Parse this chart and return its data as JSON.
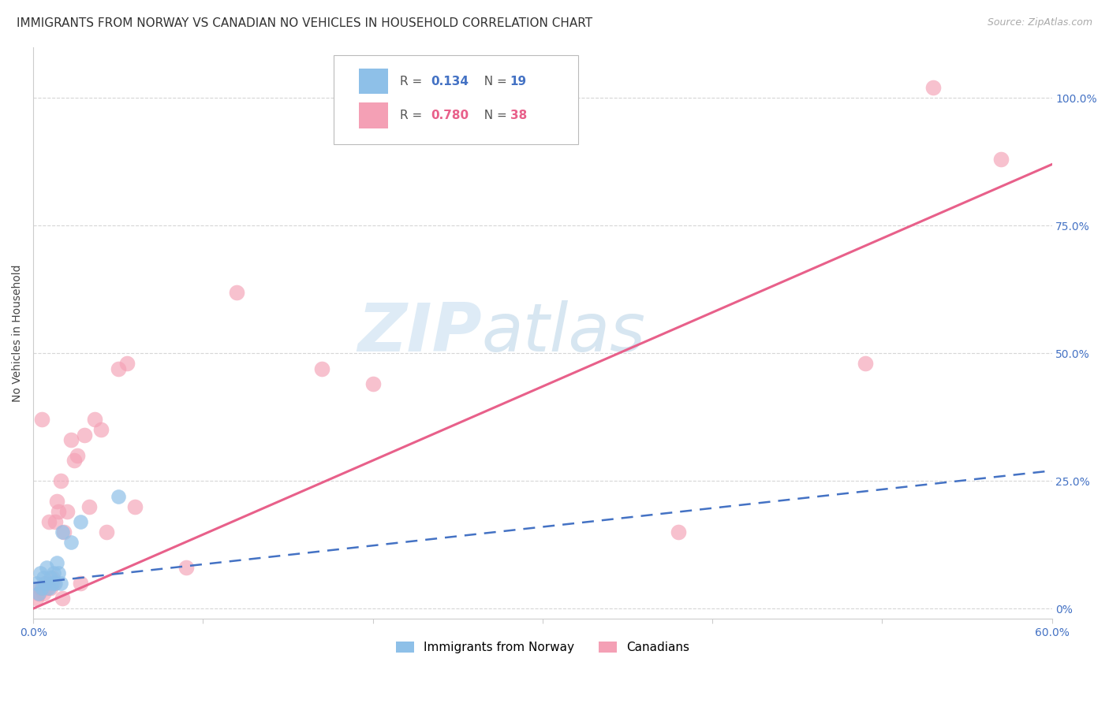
{
  "title": "IMMIGRANTS FROM NORWAY VS CANADIAN NO VEHICLES IN HOUSEHOLD CORRELATION CHART",
  "source": "Source: ZipAtlas.com",
  "ylabel_left": "No Vehicles in Household",
  "legend_label_blue": "Immigrants from Norway",
  "legend_label_pink": "Canadians",
  "r_blue": 0.134,
  "n_blue": 19,
  "r_pink": 0.78,
  "n_pink": 38,
  "xlim": [
    0.0,
    0.6
  ],
  "ylim": [
    -0.02,
    1.1
  ],
  "ytick_positions": [
    0.0,
    0.25,
    0.5,
    0.75,
    1.0
  ],
  "ytick_labels": [
    "0%",
    "25.0%",
    "50.0%",
    "75.0%",
    "100.0%"
  ],
  "color_blue": "#8ec0e8",
  "color_pink": "#f4a0b5",
  "color_line_blue": "#4472c4",
  "color_line_pink": "#e8608a",
  "color_text_blue": "#4472c4",
  "color_text_pink": "#e8608a",
  "watermark_zip": "ZIP",
  "watermark_atlas": "atlas",
  "blue_points_x": [
    0.002,
    0.003,
    0.004,
    0.005,
    0.006,
    0.007,
    0.008,
    0.009,
    0.01,
    0.011,
    0.012,
    0.013,
    0.014,
    0.015,
    0.016,
    0.017,
    0.022,
    0.028,
    0.05
  ],
  "blue_points_y": [
    0.05,
    0.03,
    0.07,
    0.04,
    0.06,
    0.05,
    0.08,
    0.04,
    0.06,
    0.05,
    0.07,
    0.05,
    0.09,
    0.07,
    0.05,
    0.15,
    0.13,
    0.17,
    0.22
  ],
  "pink_points_x": [
    0.002,
    0.003,
    0.004,
    0.005,
    0.006,
    0.007,
    0.008,
    0.009,
    0.01,
    0.011,
    0.012,
    0.013,
    0.014,
    0.015,
    0.016,
    0.017,
    0.018,
    0.02,
    0.022,
    0.024,
    0.026,
    0.028,
    0.03,
    0.033,
    0.036,
    0.04,
    0.043,
    0.05,
    0.055,
    0.06,
    0.09,
    0.12,
    0.17,
    0.2,
    0.38,
    0.49,
    0.53,
    0.57
  ],
  "pink_points_y": [
    0.02,
    0.03,
    0.04,
    0.37,
    0.03,
    0.05,
    0.04,
    0.17,
    0.04,
    0.06,
    0.05,
    0.17,
    0.21,
    0.19,
    0.25,
    0.02,
    0.15,
    0.19,
    0.33,
    0.29,
    0.3,
    0.05,
    0.34,
    0.2,
    0.37,
    0.35,
    0.15,
    0.47,
    0.48,
    0.2,
    0.08,
    0.62,
    0.47,
    0.44,
    0.15,
    0.48,
    1.02,
    0.88
  ],
  "blue_line_x": [
    0.0,
    0.6
  ],
  "blue_line_y": [
    0.05,
    0.27
  ],
  "pink_line_x": [
    0.0,
    0.6
  ],
  "pink_line_y": [
    0.0,
    0.87
  ],
  "grid_color": "#cccccc",
  "background_color": "#ffffff",
  "title_fontsize": 11,
  "axis_label_fontsize": 10,
  "tick_fontsize": 10,
  "legend_fontsize": 11,
  "source_fontsize": 9
}
